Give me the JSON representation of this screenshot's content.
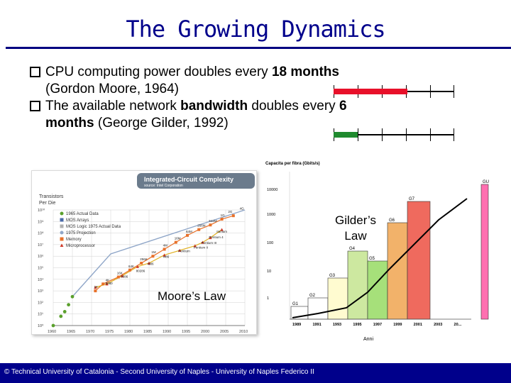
{
  "slide": {
    "title": "The Growing Dynamics",
    "bullet1": {
      "pre": "CPU computing power doubles every ",
      "bold": "18 months",
      "post": " (Gordon Moore, 1964)"
    },
    "bullet2": {
      "pre": "The available network ",
      "bold": "bandwidth",
      "mid": " doubles every ",
      "bold2": "6",
      "line2_bold": "months",
      "post": " (George Gilder, 1992)"
    },
    "moore_label": "Moore’s Law",
    "gilder_label_1": "Gilder’s",
    "gilder_label_2": "Law",
    "footer": "© Technical University of Catalonia - Second University of Naples - University of Naples Federico II"
  },
  "colors": {
    "title": "#00008b",
    "moore_bar": "#e8102a",
    "gilder_bar": "#1f8a2e",
    "footer_bg": "#00008b"
  },
  "figure_left": {
    "header_title": "Integrated-Circuit Complexity",
    "header_source": "source: Intel Corporation",
    "ylabel_1": "Transistors",
    "ylabel_2": "Per Die",
    "yticks": [
      "10¹⁰",
      "10⁹",
      "10⁸",
      "10⁷",
      "10⁶",
      "10⁵",
      "10⁴",
      "10³",
      "10²",
      "10¹",
      "10⁰"
    ],
    "xticks": [
      "1960",
      "1965",
      "1970",
      "1975",
      "1980",
      "1985",
      "1990",
      "1995",
      "2000",
      "2005",
      "2010"
    ],
    "legend": [
      "1965 Actual Data",
      "MOS Arrays",
      "MOS Logic 1975 Actual Data",
      "1975 Projection",
      "Memory",
      "Microprocessor"
    ],
    "annotations": [
      "1K",
      "4K",
      "16K",
      "64K",
      "256K",
      "1M",
      "4M",
      "16M",
      "64M",
      "256M",
      "512M",
      "1G",
      "2G",
      "4G",
      "8080",
      "8086",
      "80286",
      "i386",
      "i486",
      "Pentium",
      "Pentium II",
      "Pentium III",
      "Pentium 4",
      "Itanium"
    ]
  },
  "figure_right": {
    "ylabel": "Capacita per fibra (Gbits/s)",
    "yticks": [
      "10000",
      "1000",
      "100",
      "10",
      "1"
    ],
    "xlabel": "Anni",
    "xticks": [
      "1989",
      "1991",
      "1993",
      "1995",
      "1997",
      "1999",
      "2001",
      "2003",
      "20..."
    ],
    "bars": [
      "G1",
      "G2",
      "G3",
      "G4",
      "G5",
      "G6",
      "G7",
      "GU"
    ]
  }
}
